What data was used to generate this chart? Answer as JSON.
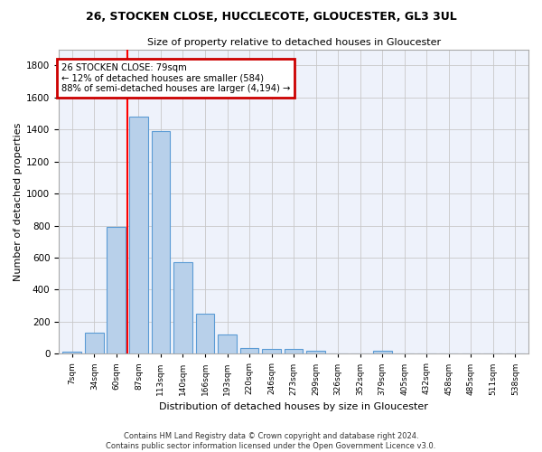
{
  "title": "26, STOCKEN CLOSE, HUCCLECOTE, GLOUCESTER, GL3 3UL",
  "subtitle": "Size of property relative to detached houses in Gloucester",
  "xlabel": "Distribution of detached houses by size in Gloucester",
  "ylabel": "Number of detached properties",
  "bar_color": "#b8d0ea",
  "bar_edge_color": "#5b9bd5",
  "background_color": "#eef2fb",
  "grid_color": "#c8c8c8",
  "categories": [
    "7sqm",
    "34sqm",
    "60sqm",
    "87sqm",
    "113sqm",
    "140sqm",
    "166sqm",
    "193sqm",
    "220sqm",
    "246sqm",
    "273sqm",
    "299sqm",
    "326sqm",
    "352sqm",
    "379sqm",
    "405sqm",
    "432sqm",
    "458sqm",
    "485sqm",
    "511sqm",
    "538sqm"
  ],
  "values": [
    10,
    130,
    790,
    1480,
    1390,
    570,
    250,
    120,
    35,
    30,
    30,
    20,
    0,
    0,
    20,
    0,
    0,
    0,
    0,
    0,
    0
  ],
  "ylim": [
    0,
    1900
  ],
  "vline_x": 2.5,
  "annotation_text_line1": "26 STOCKEN CLOSE: 79sqm",
  "annotation_text_line2": "← 12% of detached houses are smaller (584)",
  "annotation_text_line3": "88% of semi-detached houses are larger (4,194) →",
  "annotation_box_color": "#cc0000",
  "footer_line1": "Contains HM Land Registry data © Crown copyright and database right 2024.",
  "footer_line2": "Contains public sector information licensed under the Open Government Licence v3.0."
}
